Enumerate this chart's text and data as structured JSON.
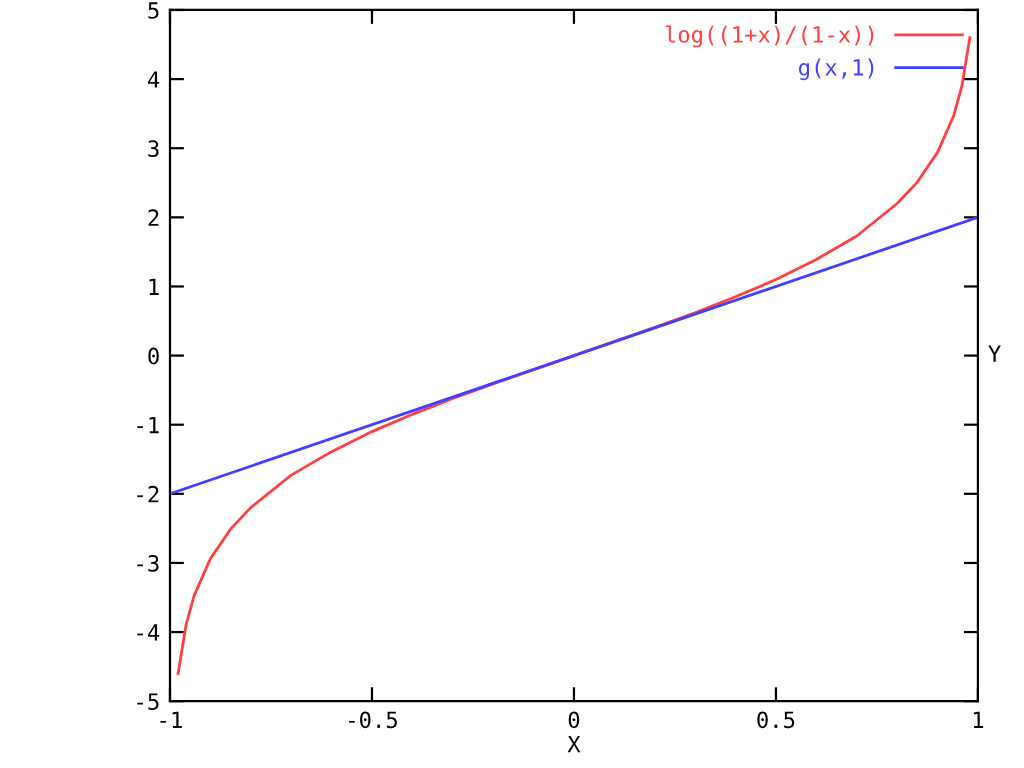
{
  "chart_data": {
    "type": "line",
    "xlabel": "X",
    "ylabel": "Y",
    "xlim": [
      -1,
      1
    ],
    "ylim": [
      -5,
      5
    ],
    "xticks": [
      -1,
      -0.5,
      0,
      0.5,
      1
    ],
    "yticks": [
      -5,
      -4,
      -3,
      -2,
      -1,
      0,
      1,
      2,
      3,
      4,
      5
    ],
    "grid": false,
    "legend": "top right",
    "marker": "none",
    "line_style": "solid",
    "series": [
      {
        "name": "log((1+x)/(1-x))",
        "color": "#ff4040",
        "x": [
          -0.98,
          -0.96,
          -0.94,
          -0.9,
          -0.85,
          -0.8,
          -0.7,
          -0.6,
          -0.5,
          -0.4,
          -0.3,
          -0.2,
          0,
          0.2,
          0.3,
          0.4,
          0.5,
          0.6,
          0.7,
          0.8,
          0.85,
          0.9,
          0.94,
          0.96,
          0.98
        ],
        "values": [
          -4.6,
          -3.89,
          -3.47,
          -2.94,
          -2.51,
          -2.2,
          -1.73,
          -1.39,
          -1.1,
          -0.85,
          -0.62,
          -0.41,
          0,
          0.41,
          0.62,
          0.85,
          1.1,
          1.39,
          1.73,
          2.2,
          2.51,
          2.94,
          3.47,
          3.89,
          4.6
        ]
      },
      {
        "name": "g(x,1)",
        "color": "#4040ff",
        "x": [
          -1,
          0,
          1
        ],
        "values": [
          -2,
          0,
          2
        ]
      }
    ]
  }
}
